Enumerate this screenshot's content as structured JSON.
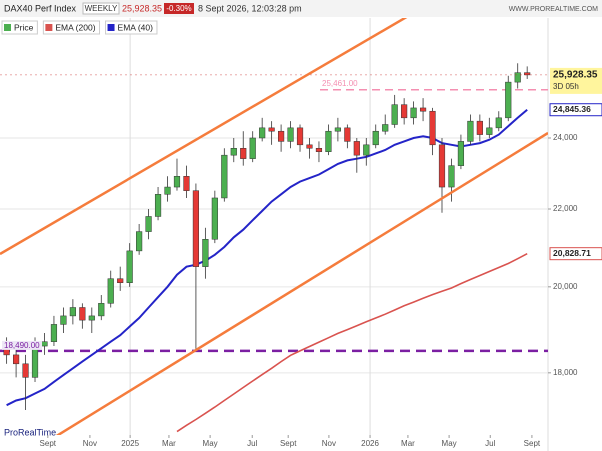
{
  "chart_data": {
    "type": "candlestick",
    "title": "DAX40 Perf Index",
    "period": "WEEKLY",
    "price_label": "25,928.35",
    "change": "-0.30%",
    "datetime": "8 Sept 2026, 12:03:28 pm",
    "site": "WWW.PROREALTIME.COM",
    "watermark": "ProRealTime",
    "countdown": "3D 05h",
    "log_scale": true,
    "grid": true,
    "xlim": [
      -0.4,
      115.4
    ],
    "ylim": [
      16680,
      27800
    ],
    "yticks": [
      {
        "value": 18000,
        "label": "18,000"
      },
      {
        "value": 20000,
        "label": "20,000"
      },
      {
        "value": 22000,
        "label": "22,000"
      },
      {
        "value": 24000,
        "label": "24,000"
      }
    ],
    "xticks": [
      {
        "value": 9.7,
        "label": "Sept"
      },
      {
        "value": 18.6,
        "label": "Nov"
      },
      {
        "value": 27.1,
        "label": "2025"
      },
      {
        "value": 35.3,
        "label": "Mar"
      },
      {
        "value": 44,
        "label": "May"
      },
      {
        "value": 52.9,
        "label": "Jul"
      },
      {
        "value": 60.5,
        "label": "Sept"
      },
      {
        "value": 69.1,
        "label": "Nov"
      },
      {
        "value": 77.8,
        "label": "2026"
      },
      {
        "value": 85.8,
        "label": "Mar"
      },
      {
        "value": 94.5,
        "label": "May"
      },
      {
        "value": 103.2,
        "label": "Jul"
      },
      {
        "value": 112,
        "label": "Sept"
      }
    ],
    "year_lines": [
      27.1,
      77.8
    ],
    "name": "Price",
    "up_color": "#4caf50",
    "down_color": "#e53935",
    "x": [
      1,
      3,
      5,
      7,
      9,
      11,
      13,
      15,
      17,
      19,
      21,
      23,
      25,
      27,
      29,
      31,
      33,
      35,
      37,
      39,
      41,
      43,
      45,
      47,
      49,
      51,
      53,
      55,
      57,
      59,
      61,
      63,
      65,
      67,
      69,
      71,
      73,
      75,
      77,
      79,
      81,
      83,
      85,
      87,
      89,
      91,
      93,
      95,
      97,
      99,
      101,
      103,
      105,
      107,
      109,
      111
    ],
    "open": [
      18600,
      18400,
      18200,
      17900,
      18600,
      18700,
      19100,
      19300,
      19500,
      19200,
      19300,
      19600,
      20200,
      20100,
      20900,
      21400,
      21800,
      22400,
      22600,
      22900,
      22500,
      20500,
      21200,
      22300,
      23500,
      23700,
      23400,
      24000,
      24300,
      24200,
      23900,
      24300,
      23800,
      23700,
      23600,
      24200,
      24300,
      23900,
      23500,
      23800,
      24200,
      24400,
      25000,
      24600,
      24900,
      24800,
      23800,
      22600,
      23200,
      23900,
      24500,
      24100,
      24300,
      24600,
      25700,
      26000
    ],
    "high": [
      18800,
      18600,
      18400,
      18800,
      18900,
      19300,
      19500,
      19700,
      19600,
      19500,
      19800,
      20400,
      20500,
      21100,
      21600,
      22000,
      22600,
      22900,
      23400,
      23200,
      22700,
      21500,
      22500,
      23700,
      24000,
      24200,
      24200,
      24600,
      24500,
      24400,
      24500,
      24400,
      24000,
      23900,
      24400,
      24600,
      24400,
      24000,
      24000,
      24400,
      24700,
      25300,
      25200,
      25100,
      25200,
      24900,
      24000,
      23400,
      24100,
      24700,
      24700,
      24600,
      24800,
      25900,
      26300,
      26200
    ],
    "low": [
      18200,
      17900,
      17200,
      17800,
      18400,
      18600,
      18900,
      19100,
      19000,
      18900,
      19200,
      19500,
      19900,
      20000,
      20800,
      21200,
      21700,
      22200,
      22500,
      22300,
      18500,
      20200,
      21100,
      22200,
      23300,
      23200,
      23300,
      23900,
      23800,
      23600,
      23700,
      23600,
      23400,
      23300,
      23500,
      23900,
      23700,
      23000,
      23200,
      23700,
      24100,
      24300,
      24400,
      24400,
      24500,
      23500,
      21900,
      22200,
      23100,
      23800,
      23900,
      24000,
      24200,
      24500,
      25500,
      25800
    ],
    "close": [
      18400,
      18200,
      17900,
      18600,
      18700,
      19100,
      19300,
      19500,
      19200,
      19300,
      19600,
      20200,
      20100,
      20900,
      21400,
      21800,
      22400,
      22600,
      22900,
      22500,
      20500,
      21200,
      22300,
      23500,
      23700,
      23400,
      24000,
      24300,
      24200,
      23900,
      24300,
      23800,
      23700,
      23600,
      24200,
      24300,
      23900,
      23500,
      23800,
      24200,
      24400,
      25000,
      24600,
      24900,
      24800,
      23800,
      22600,
      23200,
      23900,
      24500,
      24100,
      24300,
      24600,
      25700,
      26000,
      25928.35
    ],
    "series": [
      {
        "name": "EMA (200)",
        "color": "#d9534f",
        "last_label": "20,828.71",
        "values": [
          null,
          null,
          null,
          null,
          null,
          null,
          null,
          null,
          null,
          null,
          null,
          null,
          null,
          null,
          null,
          null,
          null,
          null,
          16750,
          16880,
          17000,
          17130,
          17260,
          17400,
          17540,
          17680,
          17820,
          17960,
          18100,
          18250,
          18390,
          18490,
          18590,
          18690,
          18790,
          18890,
          18980,
          19070,
          19160,
          19250,
          19340,
          19440,
          19540,
          19630,
          19720,
          19810,
          19890,
          19970,
          20080,
          20180,
          20280,
          20380,
          20480,
          20580,
          20700,
          20828.71
        ]
      },
      {
        "name": "EMA (40)",
        "color": "#2424c8",
        "last_label": "24,845.36",
        "values": [
          17300,
          17400,
          17450,
          17550,
          17650,
          17800,
          17950,
          18100,
          18250,
          18400,
          18550,
          18700,
          18850,
          19050,
          19250,
          19500,
          19750,
          20000,
          20300,
          20500,
          20550,
          20650,
          20800,
          21000,
          21250,
          21450,
          21700,
          21950,
          22200,
          22400,
          22600,
          22750,
          22850,
          22950,
          23100,
          23250,
          23350,
          23400,
          23450,
          23550,
          23650,
          23800,
          23900,
          24000,
          24050,
          24000,
          23850,
          23800,
          23750,
          23800,
          23850,
          23950,
          24100,
          24350,
          24600,
          24845.36
        ]
      }
    ],
    "levels": [
      {
        "value": 25461,
        "label": "25,461.00",
        "color": "#f48fb1"
      },
      {
        "value": 18490,
        "label": "18,490.00",
        "color": "#7b1fa2"
      }
    ]
  }
}
